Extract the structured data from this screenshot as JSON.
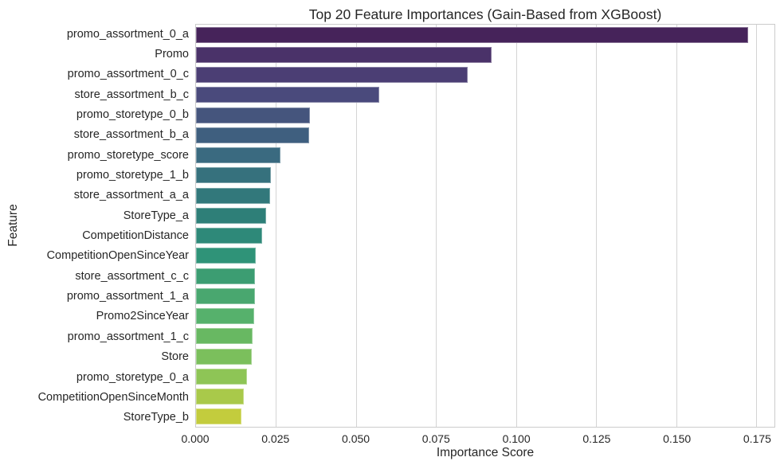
{
  "chart_data": {
    "type": "bar",
    "orientation": "horizontal",
    "title": "Top 20 Feature Importances (Gain-Based from XGBoost)",
    "xlabel": "Importance Score",
    "ylabel": "Feature",
    "categories": [
      "promo_assortment_0_a",
      "Promo",
      "promo_assortment_0_c",
      "store_assortment_b_c",
      "promo_storetype_0_b",
      "store_assortment_b_a",
      "promo_storetype_score",
      "promo_storetype_1_b",
      "store_assortment_a_a",
      "StoreType_a",
      "CompetitionDistance",
      "CompetitionOpenSinceYear",
      "store_assortment_c_c",
      "promo_assortment_1_a",
      "Promo2SinceYear",
      "promo_assortment_1_c",
      "Store",
      "promo_storetype_0_a",
      "CompetitionOpenSinceMonth",
      "StoreType_b"
    ],
    "values": [
      0.1723,
      0.0923,
      0.0849,
      0.0571,
      0.0356,
      0.0352,
      0.0263,
      0.0233,
      0.0231,
      0.0218,
      0.0206,
      0.0186,
      0.0184,
      0.0184,
      0.0182,
      0.0176,
      0.0174,
      0.0159,
      0.0149,
      0.0142
    ],
    "palette": [
      "#46235a",
      "#4a3269",
      "#4b3e74",
      "#4a4a7c",
      "#45557d",
      "#3f5f7f",
      "#3a6a80",
      "#36717d",
      "#32787b",
      "#2e7f78",
      "#2e8979",
      "#2f9378",
      "#3c9d72",
      "#49a76f",
      "#56b16c",
      "#68b862",
      "#7bbf5c",
      "#8ec556",
      "#a9c94a",
      "#c3cc3d"
    ],
    "xlim": [
      0,
      0.1806
    ],
    "xtick_values": [
      0,
      0.025,
      0.05,
      0.075,
      0.1,
      0.125,
      0.15,
      0.175
    ],
    "xtick_labels": [
      "0.000",
      "0.025",
      "0.050",
      "0.075",
      "0.100",
      "0.125",
      "0.150",
      "0.175"
    ],
    "grid": true,
    "legend": false,
    "style": {
      "background": "#ffffff",
      "grid_color": "#d4d4d4",
      "spine_color": "#cccccc",
      "text_color": "#262626"
    }
  }
}
